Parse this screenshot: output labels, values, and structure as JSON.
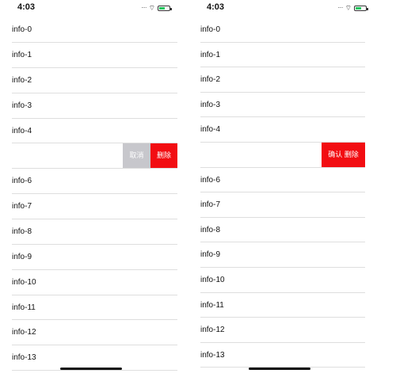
{
  "left": {
    "status_time": "4:03",
    "rows_before": [
      "info-0",
      "info-1",
      "info-2",
      "info-3",
      "info-4"
    ],
    "swipe_actions": {
      "cancel": "取消",
      "delete": "删除"
    },
    "rows_after": [
      "info-6",
      "info-7",
      "info-8",
      "info-9",
      "info-10",
      "info-11",
      "info-12",
      "info-13"
    ]
  },
  "right": {
    "status_time": "4:03",
    "rows_before": [
      "info-0",
      "info-1",
      "info-2",
      "info-3",
      "info-4"
    ],
    "swipe_actions": {
      "confirm_delete": "确认 删除"
    },
    "rows_after": [
      "info-6",
      "info-7",
      "info-8",
      "info-9",
      "info-10",
      "info-11",
      "info-12",
      "info-13"
    ]
  },
  "colors": {
    "delete_red": "#f20d12",
    "cancel_gray": "#c7c7cc",
    "divider": "#dedede",
    "battery_green": "#22c55e"
  },
  "icons": [
    "signal-dots-icon",
    "wifi-icon",
    "battery-icon"
  ]
}
